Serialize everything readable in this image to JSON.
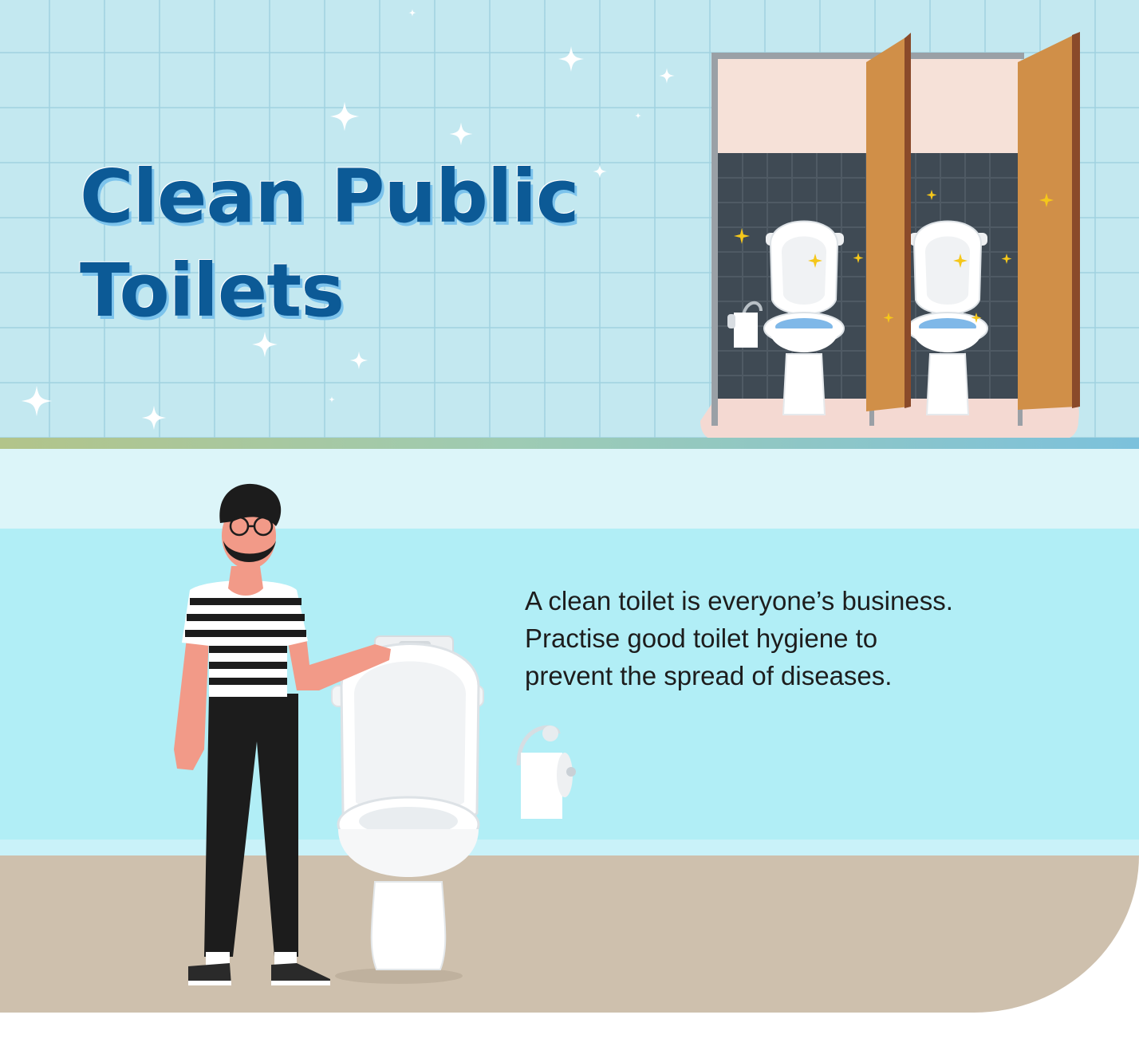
{
  "title": {
    "line1": "Clean Public",
    "line2": "Toilets"
  },
  "message": {
    "line1": "A clean toilet is everyone’s business.",
    "line2": "Practise good toilet hygiene to",
    "line3": "prevent the spread of diseases."
  },
  "colors": {
    "title": "#0c5a96",
    "title_shadow": "#7cc3ec",
    "tile_wall": "#c3e8f0",
    "wall": "#b1eef6",
    "floor": "#cec0ad",
    "stall_door": "#d08f48",
    "stall_tiles": "#3f4a54"
  },
  "icons": [
    "sparkle-icon",
    "toilet-icon",
    "toilet-paper-icon",
    "stall-door-icon",
    "person-illustration"
  ]
}
